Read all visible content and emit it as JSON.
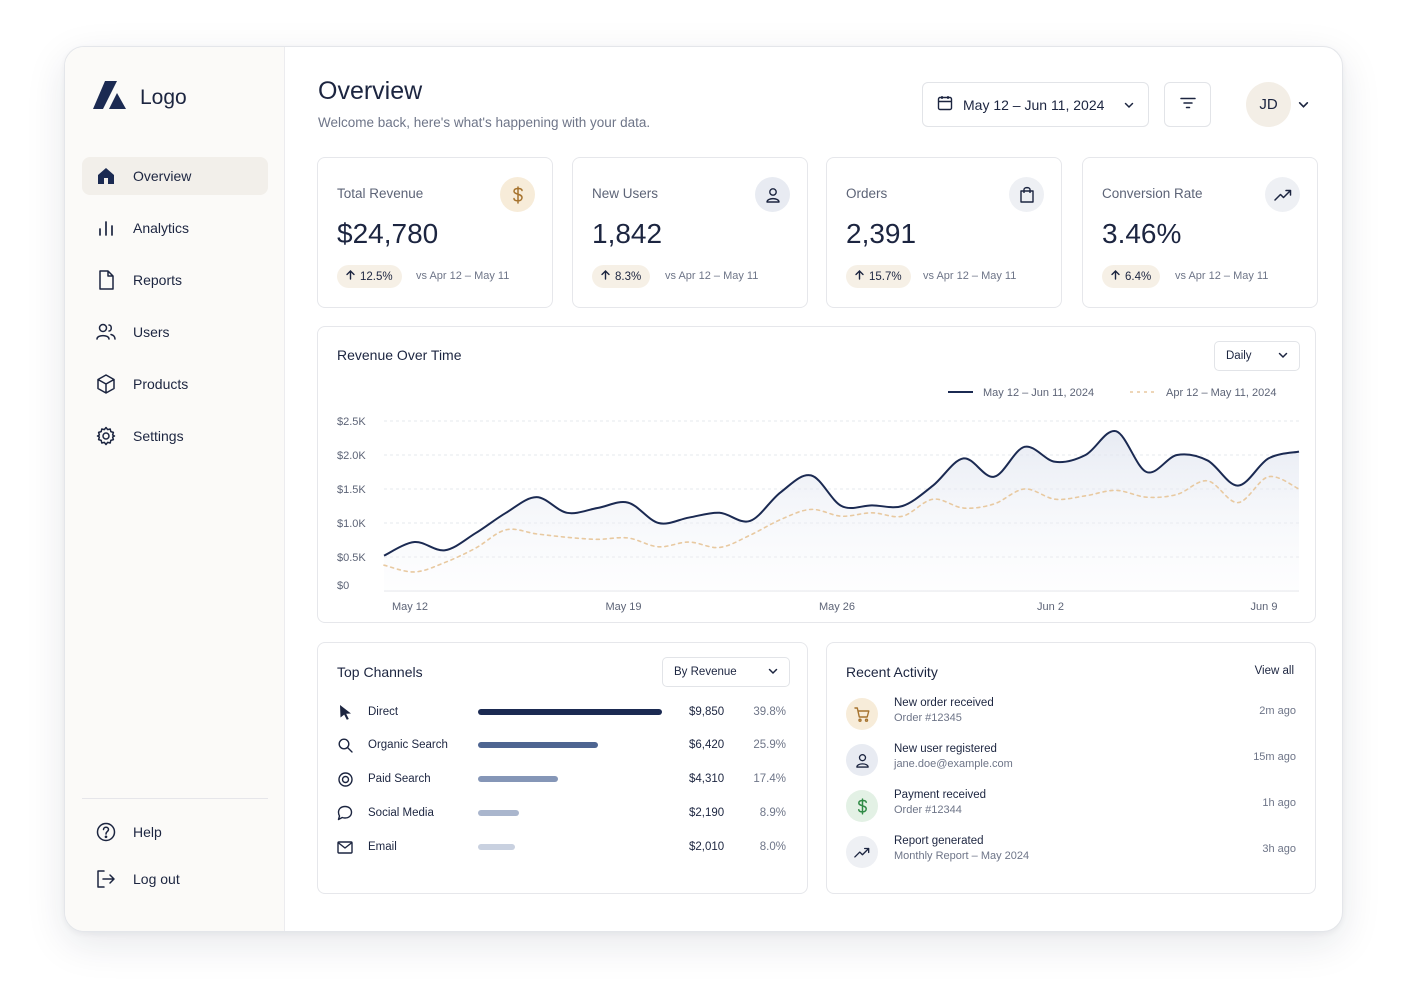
{
  "brand": {
    "logo_text": "Logo"
  },
  "sidebar": {
    "items": [
      {
        "label": "Overview",
        "icon": "home-icon",
        "active": true
      },
      {
        "label": "Analytics",
        "icon": "bar-chart-icon"
      },
      {
        "label": "Reports",
        "icon": "document-icon"
      },
      {
        "label": "Users",
        "icon": "users-icon"
      },
      {
        "label": "Products",
        "icon": "box-icon"
      },
      {
        "label": "Settings",
        "icon": "gear-icon"
      }
    ],
    "bottom": [
      {
        "label": "Help",
        "icon": "help-icon"
      },
      {
        "label": "Log out",
        "icon": "logout-icon"
      }
    ]
  },
  "header": {
    "title": "Overview",
    "subtitle": "Welcome back, here's what's happening with your data.",
    "date_range": "May 12 – Jun 11, 2024",
    "avatar_initials": "JD"
  },
  "kpis": [
    {
      "label": "Total Revenue",
      "value": "$24,780",
      "change": "12.5%",
      "compare": "vs Apr 12 – May 11",
      "icon": "dollar-icon"
    },
    {
      "label": "New Users",
      "value": "1,842",
      "change": "8.3%",
      "compare": "vs Apr 12 – May 11",
      "icon": "user-icon"
    },
    {
      "label": "Orders",
      "value": "2,391",
      "change": "15.7%",
      "compare": "vs Apr 12 – May 11",
      "icon": "shopping-bag-icon"
    },
    {
      "label": "Conversion Rate",
      "value": "3.46%",
      "change": "6.4%",
      "compare": "vs Apr 12 – May 11",
      "icon": "trending-up-icon"
    }
  ],
  "revenue_chart": {
    "title": "Revenue Over Time",
    "granularity": "Daily"
  },
  "chart_data": {
    "type": "line",
    "title": "Revenue Over Time",
    "x_tick_labels": [
      "May 12",
      "May 19",
      "May 26",
      "Jun 2",
      "Jun 9"
    ],
    "y_tick_labels": [
      "$0",
      "$0.5K",
      "$1.0K",
      "$1.5K",
      "$2.0K",
      "$2.5K"
    ],
    "ylim": [
      0,
      2500
    ],
    "x": [
      "May 12",
      "May 13",
      "May 14",
      "May 15",
      "May 16",
      "May 17",
      "May 18",
      "May 19",
      "May 20",
      "May 21",
      "May 22",
      "May 23",
      "May 24",
      "May 25",
      "May 26",
      "May 27",
      "May 28",
      "May 29",
      "May 30",
      "May 31",
      "Jun 1",
      "Jun 2",
      "Jun 3",
      "Jun 4",
      "Jun 5",
      "Jun 6",
      "Jun 7",
      "Jun 8",
      "Jun 9",
      "Jun 10",
      "Jun 11"
    ],
    "series": [
      {
        "name": "May 12 – Jun 11, 2024",
        "style": "solid",
        "color": "#1b2a52",
        "values": [
          520,
          720,
          600,
          850,
          1150,
          1380,
          1150,
          1220,
          1300,
          1000,
          1080,
          1150,
          1030,
          1450,
          1700,
          1250,
          1260,
          1250,
          1550,
          1950,
          1680,
          2120,
          1900,
          2000,
          2350,
          1750,
          2000,
          1920,
          1550,
          1950,
          2050
        ]
      },
      {
        "name": "Apr 12 – May 11, 2024",
        "style": "dashed",
        "color": "#e8c9a0",
        "values": [
          380,
          280,
          420,
          630,
          900,
          840,
          790,
          760,
          780,
          650,
          720,
          640,
          820,
          1050,
          1200,
          1100,
          1150,
          1100,
          1350,
          1220,
          1280,
          1500,
          1350,
          1400,
          1480,
          1380,
          1420,
          1620,
          1300,
          1680,
          1500
        ]
      }
    ],
    "legend_position": "top-right",
    "grid": true
  },
  "channels": {
    "title": "Top Channels",
    "sort_label": "By Revenue",
    "items": [
      {
        "name": "Direct",
        "value": "$9,850",
        "pct": "39.8%",
        "share": 0.398,
        "icon": "cursor-icon",
        "color": "#1b2a52"
      },
      {
        "name": "Organic Search",
        "value": "$6,420",
        "pct": "25.9%",
        "share": 0.259,
        "icon": "search-icon",
        "color": "#4e6591"
      },
      {
        "name": "Paid Search",
        "value": "$4,310",
        "pct": "17.4%",
        "share": 0.174,
        "icon": "target-icon",
        "color": "#8596b7"
      },
      {
        "name": "Social Media",
        "value": "$2,190",
        "pct": "8.9%",
        "share": 0.089,
        "icon": "chat-icon",
        "color": "#aab6cd"
      },
      {
        "name": "Email",
        "value": "$2,010",
        "pct": "8.0%",
        "share": 0.08,
        "icon": "mail-icon",
        "color": "#c9d1e0"
      }
    ]
  },
  "activity": {
    "title": "Recent Activity",
    "view_all": "View all",
    "items": [
      {
        "title": "New order received",
        "sub": "Order #12345",
        "time": "2m ago",
        "icon": "cart-icon"
      },
      {
        "title": "New user registered",
        "sub": "jane.doe@example.com",
        "time": "15m ago",
        "icon": "user-icon"
      },
      {
        "title": "Payment received",
        "sub": "Order #12344",
        "time": "1h ago",
        "icon": "dollar-icon"
      },
      {
        "title": "Report generated",
        "sub": "Monthly Report – May 2024",
        "time": "3h ago",
        "icon": "trending-up-icon"
      }
    ]
  }
}
